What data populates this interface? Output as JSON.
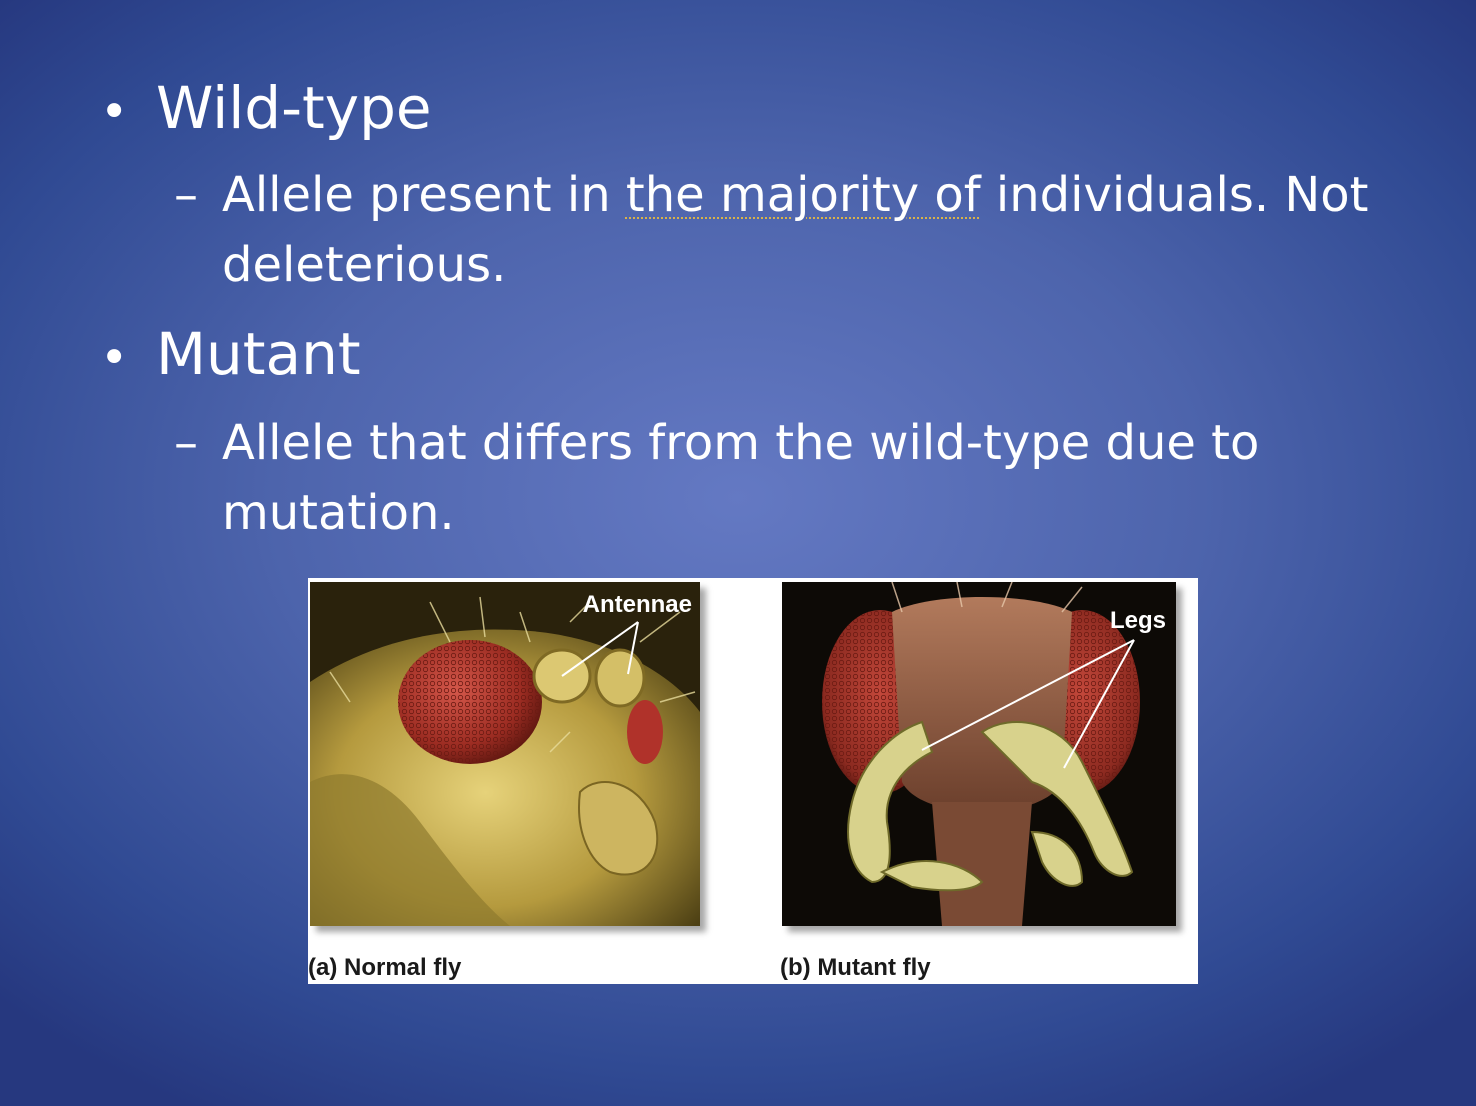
{
  "slide": {
    "bullets": [
      {
        "heading": "Wild-type",
        "sub_pre": "Allele present in ",
        "sub_highlight": "the majority of",
        "sub_post": " individuals. Not deleterious."
      },
      {
        "heading": "Mutant",
        "sub_text": "Allele that differs from the wild-type due to mutation."
      }
    ],
    "bullet_symbol": "•",
    "sub_symbol": "–"
  },
  "figure": {
    "left": {
      "caption": "(a) Normal fly",
      "label": "Antennae"
    },
    "right": {
      "caption": "(b) Mutant fly",
      "label": "Legs"
    }
  },
  "colors": {
    "background_center": "#6479c3",
    "background_edge": "#26387f",
    "text": "#ffffff",
    "highlight_underline": "#d8b24a"
  }
}
